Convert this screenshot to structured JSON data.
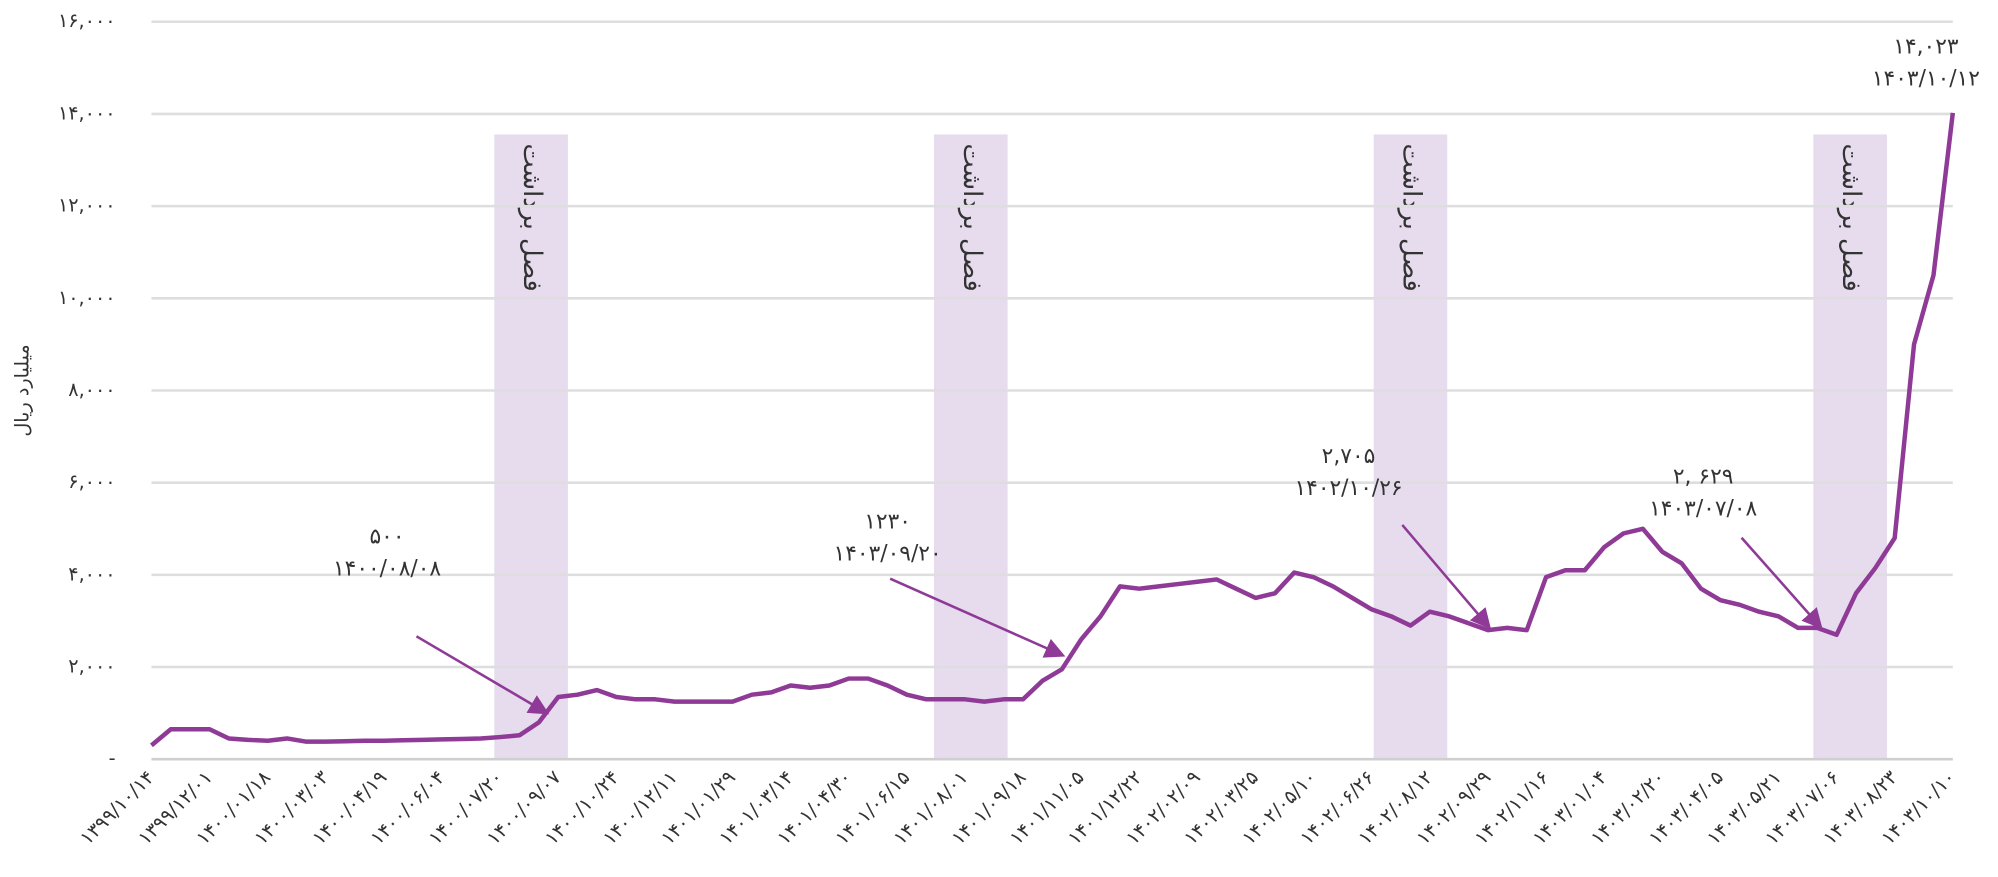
{
  "chart_data": {
    "type": "line",
    "y_label": "میلیارد ریال",
    "categories": [
      "۱۳۹۹/۱۰/۱۴",
      null,
      null,
      "۱۳۹۹/۱۲/۰۱",
      null,
      null,
      "۱۴۰۰/۰۱/۱۸",
      null,
      null,
      "۱۴۰۰/۰۳/۰۳",
      null,
      null,
      "۱۴۰۰/۰۴/۱۹",
      null,
      null,
      "۱۴۰۰/۰۶/۰۴",
      null,
      null,
      "۱۴۰۰/۰۷/۲۰",
      null,
      null,
      "۱۴۰۰/۰۹/۰۷",
      null,
      null,
      "۱۴۰۰/۱۰/۲۴",
      null,
      null,
      "۱۴۰۰/۱۲/۱۱",
      null,
      null,
      "۱۴۰۱/۰۱/۲۹",
      null,
      null,
      "۱۴۰۱/۰۳/۱۴",
      null,
      null,
      "۱۴۰۱/۰۴/۳۰",
      null,
      null,
      "۱۴۰۱/۰۶/۱۵",
      null,
      null,
      "۱۴۰۱/۰۸/۰۱",
      null,
      null,
      "۱۴۰۱/۰۹/۱۸",
      null,
      null,
      "۱۴۰۱/۱۱/۰۵",
      null,
      null,
      "۱۴۰۱/۱۲/۲۲",
      null,
      null,
      "۱۴۰۲/۰۲/۰۹",
      null,
      null,
      "۱۴۰۲/۰۳/۲۵",
      null,
      null,
      "۱۴۰۲/۰۵/۱۰",
      null,
      null,
      "۱۴۰۲/۰۶/۲۶",
      null,
      null,
      "۱۴۰۲/۰۸/۱۲",
      null,
      null,
      "۱۴۰۲/۰۹/۲۹",
      null,
      null,
      "۱۴۰۲/۱۱/۱۶",
      null,
      null,
      "۱۴۰۳/۰۱/۰۴",
      null,
      null,
      "۱۴۰۳/۰۲/۲۰",
      null,
      null,
      "۱۴۰۳/۰۴/۰۵",
      null,
      null,
      "۱۴۰۳/۰۵/۲۱",
      null,
      null,
      "۱۴۰۳/۰۷/۰۶",
      null,
      null,
      "۱۴۰۳/۰۸/۲۳",
      null,
      null,
      "۱۴۰۳/۱۰/۱۰"
    ],
    "values": [
      300,
      650,
      650,
      650,
      450,
      420,
      400,
      450,
      380,
      380,
      390,
      400,
      400,
      410,
      420,
      430,
      440,
      450,
      480,
      520,
      800,
      1350,
      1400,
      1500,
      1350,
      1300,
      1300,
      1250,
      1250,
      1250,
      1250,
      1400,
      1450,
      1600,
      1550,
      1600,
      1750,
      1750,
      1600,
      1400,
      1300,
      1300,
      1300,
      1250,
      1300,
      1300,
      1700,
      1950,
      2600,
      3100,
      3750,
      3700,
      3750,
      3800,
      3850,
      3900,
      3700,
      3500,
      3600,
      4050,
      3950,
      3750,
      3500,
      3250,
      3100,
      2900,
      3200,
      3100,
      2950,
      2800,
      2850,
      2800,
      3950,
      4100,
      4100,
      4600,
      4900,
      5000,
      4500,
      4250,
      3700,
      3450,
      3350,
      3200,
      3100,
      2850,
      2850,
      2700,
      3600,
      4150,
      4800,
      9000,
      10500,
      14023
    ],
    "color": "#8e3a96",
    "ylim": [
      0,
      16000
    ],
    "yticks": [
      {
        "value": 0,
        "label": "-"
      },
      {
        "value": 2000,
        "label": "۲,۰۰۰"
      },
      {
        "value": 4000,
        "label": "۴,۰۰۰"
      },
      {
        "value": 6000,
        "label": "۶,۰۰۰"
      },
      {
        "value": 8000,
        "label": "۸,۰۰۰"
      },
      {
        "value": 10000,
        "label": "۱۰,۰۰۰"
      },
      {
        "value": 12000,
        "label": "۱۲,۰۰۰"
      },
      {
        "value": 14000,
        "label": "۱۴,۰۰۰"
      },
      {
        "value": 16000,
        "label": "۱۶,۰۰۰"
      }
    ],
    "grid": true,
    "bands": [
      {
        "label": "فصل برداشت",
        "start": 17.7,
        "end": 21.5,
        "color": "#e6dcee"
      },
      {
        "label": "فصل برداشت",
        "start": 40.4,
        "end": 44.2,
        "color": "#e6dcee"
      },
      {
        "label": "فصل برداشت",
        "start": 63.1,
        "end": 66.9,
        "color": "#e6dcee"
      },
      {
        "label": "فصل برداشت",
        "start": 85.8,
        "end": 89.6,
        "color": "#e6dcee"
      }
    ],
    "annotations": [
      {
        "lines": [
          "۵۰۰",
          "۱۴۰۰/۰۸/۰۸"
        ]
      },
      {
        "lines": [
          "۱۲۳۰",
          "۱۴۰۳/۰۹/۲۰"
        ]
      },
      {
        "lines": [
          "۲,۷۰۵",
          "۱۴۰۲/۱۰/۲۶"
        ]
      },
      {
        "lines": [
          "۲, ۶۲۹",
          "۱۴۰۳/۰۷/۰۸"
        ]
      },
      {
        "lines": [
          "۱۴,۰۲۳",
          "۱۴۰۳/۱۰/۱۲"
        ]
      }
    ]
  }
}
